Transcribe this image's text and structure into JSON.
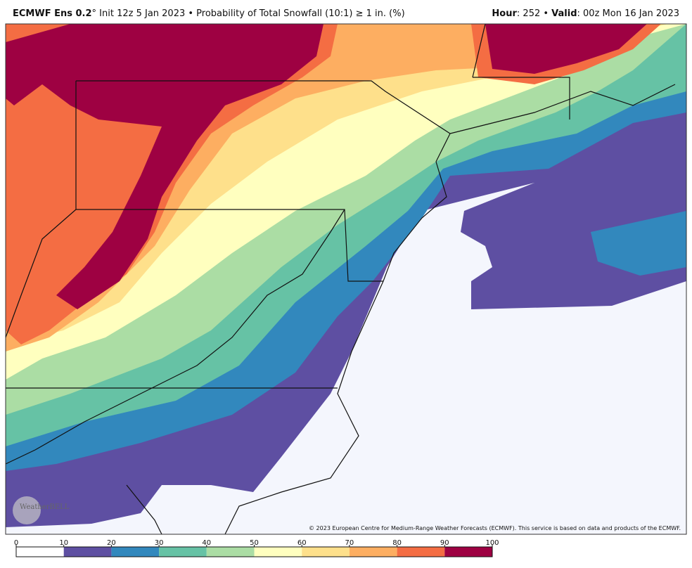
{
  "header": {
    "model": "ECMWF Ens 0.2",
    "description": "° Init 12z 5 Jan 2023 • Probability of Total Snowfall (10:1) ≥ 1 in. (%)",
    "hour_label": "Hour",
    "hour_value": ": 252 • ",
    "valid_label": "Valid",
    "valid_value": ": 00z Mon 16 Jan 2023"
  },
  "map": {
    "logo": "WeatherBELL",
    "attribution": "© 2023 European Centre for Medium-Range Weather Forecasts (ECMWF). This service is based on data and products of the ECMWF."
  },
  "legend": {
    "ticks": [
      0,
      10,
      20,
      30,
      40,
      50,
      60,
      70,
      80,
      90,
      100
    ],
    "colors": [
      "#ffffff",
      "#5e4fa2",
      "#3288bd",
      "#66c2a5",
      "#abdda4",
      "#ffffbf",
      "#fee08b",
      "#fdae61",
      "#f46d43",
      "#9e0142"
    ]
  }
}
